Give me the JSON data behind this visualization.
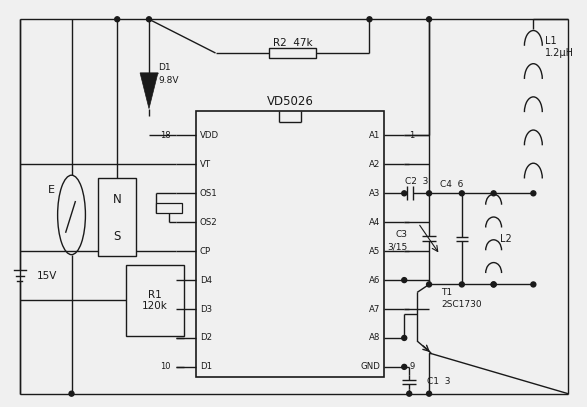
{
  "bg_color": "#f0f0f0",
  "line_color": "#1a1a1a",
  "ic_label": "VD5026",
  "ic_left_pins": [
    "VDD",
    "VT",
    "OS1",
    "OS2",
    "CP",
    "D4",
    "D3",
    "D2",
    "D1"
  ],
  "ic_right_pins": [
    "A1",
    "A2",
    "A3",
    "A4",
    "A5",
    "A6",
    "A7",
    "A8",
    "GND"
  ],
  "ic_left_numbers": [
    "18",
    "",
    "",
    "",
    "",
    "",
    "",
    "",
    "10"
  ],
  "ic_right_numbers": [
    "1",
    "",
    "",
    "",
    "",
    "",
    "",
    "",
    "9"
  ],
  "components": {
    "D1_label": "D1",
    "D1_voltage": "9.8V",
    "R2_label": "R2  47k",
    "R1_label": "R1\n120k",
    "battery_label": "15V",
    "E_label": "E",
    "L1_label": "L1",
    "L1_val": "1.2μH",
    "L2_label": "L2",
    "C1_label": "C1  3",
    "C2_label": "C2  3",
    "C3_label": "C3",
    "C3_val": "3/15",
    "C4_label": "C4  6",
    "T1_label": "T1",
    "T1_val": "2SC1730"
  }
}
